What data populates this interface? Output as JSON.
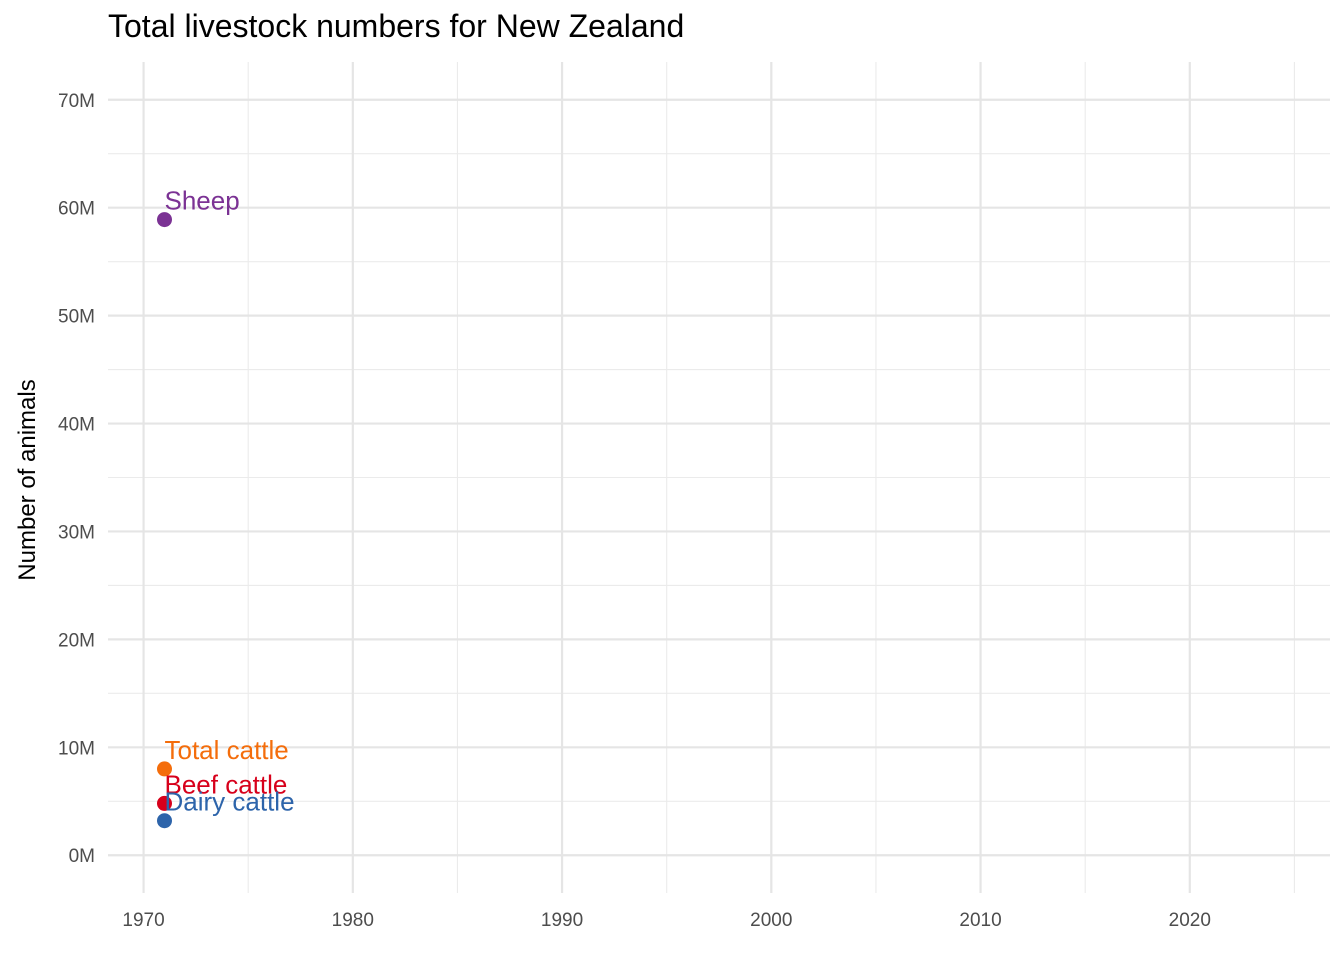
{
  "chart_data": {
    "type": "scatter",
    "title": "Total livestock numbers for New Zealand",
    "xlabel": "",
    "ylabel": "Number of animals",
    "xlim": [
      1968.3,
      2026.7
    ],
    "ylim": [
      -3500000,
      73500000
    ],
    "x_ticks": [
      1970,
      1980,
      1990,
      2000,
      2010,
      2020
    ],
    "x_tick_labels": [
      "1970",
      "1980",
      "1990",
      "2000",
      "2010",
      "2020"
    ],
    "x_minor_ticks": [
      1975,
      1985,
      1995,
      2005,
      2015,
      2025
    ],
    "y_ticks": [
      0,
      10000000,
      20000000,
      30000000,
      40000000,
      50000000,
      60000000,
      70000000
    ],
    "y_tick_labels": [
      "0M",
      "10M",
      "20M",
      "30M",
      "40M",
      "50M",
      "60M",
      "70M"
    ],
    "y_minor_ticks": [
      5000000,
      15000000,
      25000000,
      35000000,
      45000000,
      55000000,
      65000000
    ],
    "grid": true,
    "series": [
      {
        "name": "Sheep",
        "color": "#7b3294",
        "points": [
          {
            "x": 1971,
            "y": 58900000
          }
        ]
      },
      {
        "name": "Total cattle",
        "color": "#f46d0b",
        "points": [
          {
            "x": 1971,
            "y": 8000000
          }
        ]
      },
      {
        "name": "Beef cattle",
        "color": "#d7001b",
        "points": [
          {
            "x": 1971,
            "y": 4800000
          }
        ]
      },
      {
        "name": "Dairy cattle",
        "color": "#2d64aa",
        "points": [
          {
            "x": 1971,
            "y": 3200000
          }
        ]
      }
    ]
  }
}
